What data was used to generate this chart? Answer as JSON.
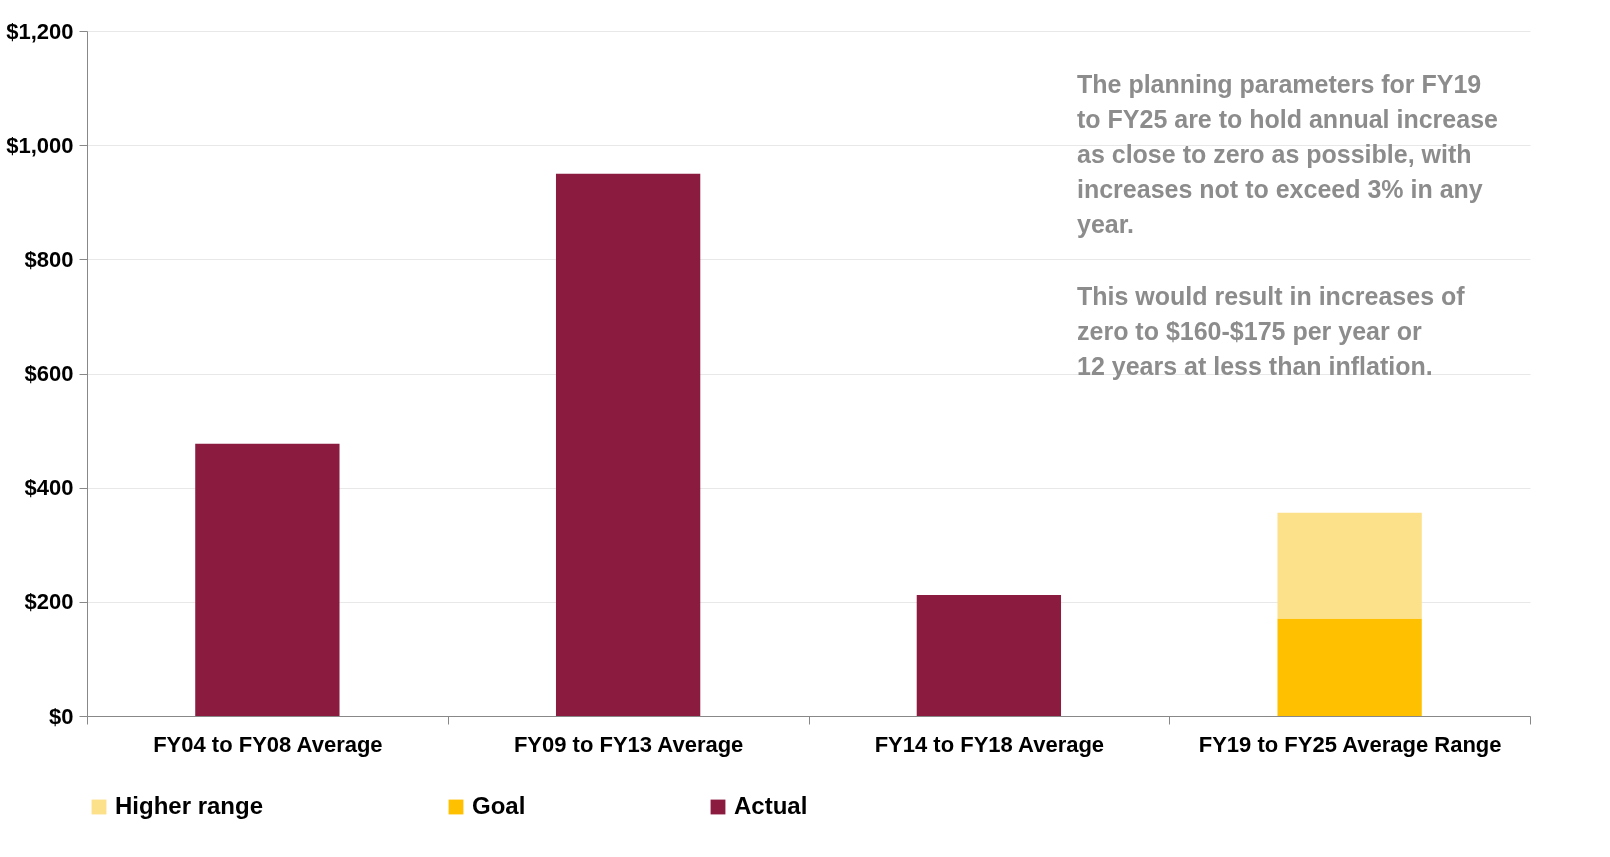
{
  "chart_data": {
    "type": "bar",
    "stacked": true,
    "categories": [
      "FY04 to FY08 Average",
      "FY09 to FY13 Average",
      "FY14 to FY18 Average",
      "FY19 to FY25 Average Range"
    ],
    "series": [
      {
        "name": "Actual",
        "color": "#8b1c40",
        "values": [
          477,
          950,
          212,
          null
        ]
      },
      {
        "name": "Goal",
        "color": "#ffc000",
        "values": [
          null,
          null,
          null,
          171
        ]
      },
      {
        "name": "Higher range",
        "color": "#fde08a",
        "values": [
          null,
          null,
          null,
          185
        ]
      }
    ],
    "ylim": [
      0,
      1200
    ],
    "yticks": [
      {
        "value": 0,
        "label": "$0"
      },
      {
        "value": 200,
        "label": "$200"
      },
      {
        "value": 400,
        "label": "$400"
      },
      {
        "value": 600,
        "label": "$600"
      },
      {
        "value": 800,
        "label": "$800"
      },
      {
        "value": 1000,
        "label": "$1,000"
      },
      {
        "value": 1200,
        "label": "$1,200"
      }
    ],
    "grid": "y",
    "legend": "bottom",
    "annotations": [
      "The planning parameters for FY19\nto FY25 are to hold annual increase\nas close to zero as possible, with\nincreases not to exceed 3% in any\nyear.",
      "This would result in increases of\nzero to $160-$175 per year or\n12 years at less than inflation."
    ]
  }
}
